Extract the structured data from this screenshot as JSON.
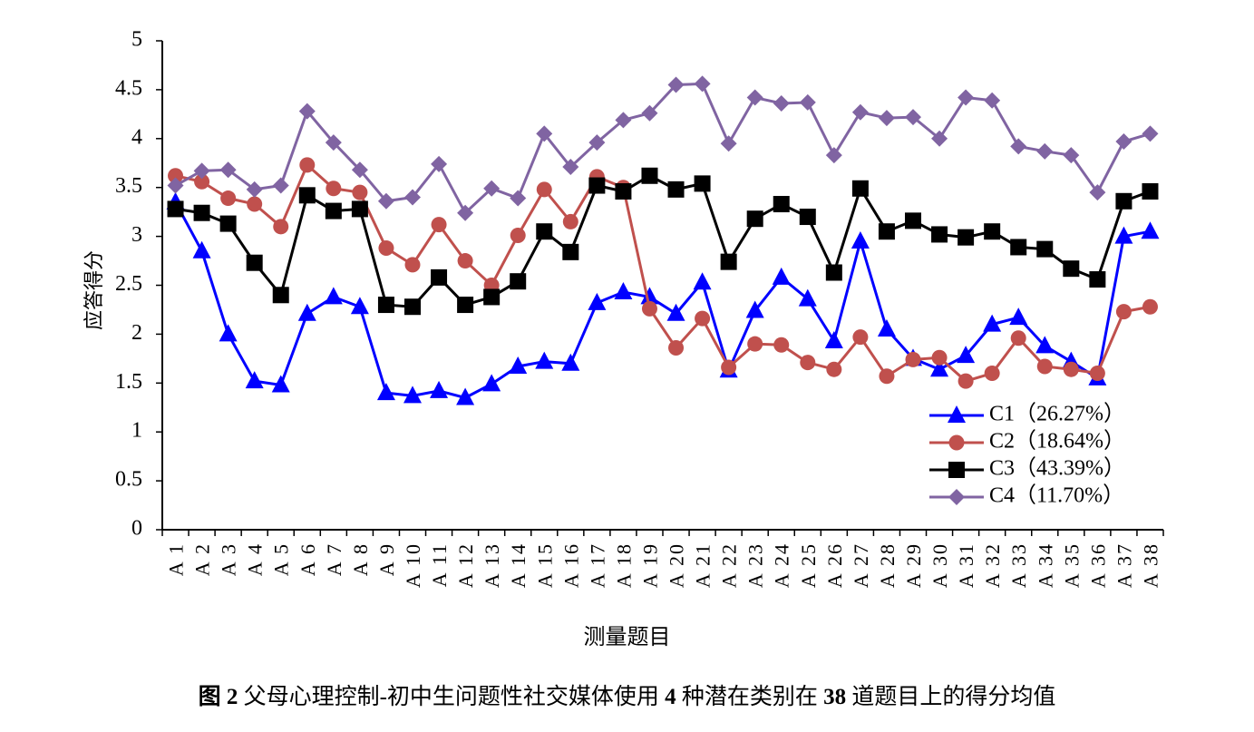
{
  "chart_data": {
    "type": "line",
    "categories": [
      "A1",
      "A2",
      "A3",
      "A4",
      "A5",
      "A6",
      "A7",
      "A8",
      "A9",
      "A10",
      "A11",
      "A12",
      "A13",
      "A14",
      "A15",
      "A16",
      "A17",
      "A18",
      "A19",
      "A20",
      "A21",
      "A22",
      "A23",
      "A24",
      "A25",
      "A26",
      "A27",
      "A28",
      "A29",
      "A30",
      "A31",
      "A32",
      "A33",
      "A34",
      "A35",
      "A36",
      "A37",
      "A38"
    ],
    "ylabel": "应答得分",
    "xlabel": "测量题目",
    "ylim": [
      0,
      5
    ],
    "yticks": [
      "0",
      "0.5",
      "1",
      "1.5",
      "2",
      "2.5",
      "3",
      "3.5",
      "4",
      "4.5",
      "5"
    ],
    "grid": false,
    "legend_position": "lower-right",
    "series": [
      {
        "name": "C1（26.27%）",
        "color": "#0000ff",
        "marker": "triangle",
        "values": [
          3.35,
          2.85,
          2.0,
          1.52,
          1.48,
          2.21,
          2.38,
          2.28,
          1.4,
          1.37,
          1.42,
          1.35,
          1.49,
          1.67,
          1.72,
          1.7,
          2.32,
          2.43,
          2.38,
          2.21,
          2.53,
          1.63,
          2.24,
          2.58,
          2.36,
          1.93,
          2.95,
          2.05,
          1.75,
          1.64,
          1.78,
          2.1,
          2.17,
          1.88,
          1.72,
          1.55,
          3.0,
          3.05
        ]
      },
      {
        "name": "C2（18.64%）",
        "color": "#c0504d",
        "marker": "circle",
        "values": [
          3.62,
          3.56,
          3.39,
          3.33,
          3.1,
          3.73,
          3.49,
          3.45,
          2.88,
          2.71,
          3.12,
          2.75,
          2.5,
          3.01,
          3.48,
          3.15,
          3.61,
          3.5,
          2.26,
          1.86,
          2.16,
          1.66,
          1.9,
          1.89,
          1.71,
          1.64,
          1.97,
          1.57,
          1.74,
          1.76,
          1.52,
          1.6,
          1.96,
          1.67,
          1.64,
          1.6,
          2.23,
          2.28
        ]
      },
      {
        "name": "C3（43.39%）",
        "color": "#000000",
        "marker": "square",
        "values": [
          3.28,
          3.24,
          3.13,
          2.73,
          2.4,
          3.42,
          3.26,
          3.28,
          2.3,
          2.28,
          2.58,
          2.3,
          2.38,
          2.54,
          3.05,
          2.84,
          3.52,
          3.46,
          3.62,
          3.48,
          3.54,
          2.74,
          3.18,
          3.33,
          3.2,
          2.63,
          3.49,
          3.05,
          3.16,
          3.02,
          2.99,
          3.05,
          2.89,
          2.87,
          2.67,
          2.56,
          3.36,
          3.46
        ]
      },
      {
        "name": "C4（11.70%）",
        "color": "#8064a2",
        "marker": "diamond",
        "values": [
          3.52,
          3.67,
          3.68,
          3.48,
          3.52,
          4.28,
          3.96,
          3.68,
          3.36,
          3.4,
          3.74,
          3.24,
          3.49,
          3.39,
          4.05,
          3.71,
          3.96,
          4.19,
          4.26,
          4.55,
          4.56,
          3.95,
          4.42,
          4.36,
          4.37,
          3.83,
          4.27,
          4.21,
          4.22,
          4.0,
          4.42,
          4.39,
          3.92,
          3.87,
          3.83,
          3.45,
          3.97,
          4.05
        ]
      }
    ]
  },
  "caption": {
    "prefix": "图 2",
    "text1": " 父母心理控制-初中生问题性社交媒体使用 ",
    "num1": "4",
    "text2": " 种潜在类别在 ",
    "num2": "38",
    "text3": " 道题目上的得分均值"
  }
}
